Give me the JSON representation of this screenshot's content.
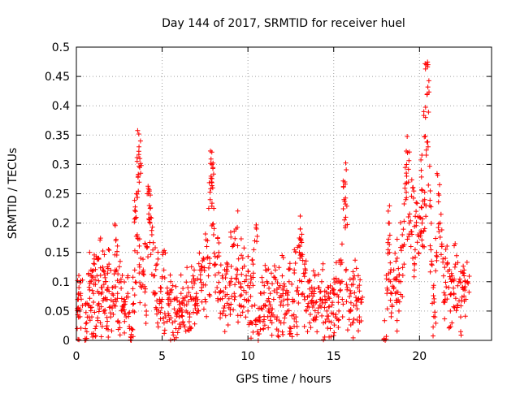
{
  "chart_data": {
    "type": "scatter",
    "title": "Day 144 of 2017, SRMTID for receiver huel",
    "xlabel": "GPS time / hours",
    "ylabel": "SRMTID / TECUs",
    "xlim": [
      0,
      24.2
    ],
    "ylim": [
      0,
      0.5
    ],
    "x_ticks": [
      0,
      5,
      10,
      15,
      20
    ],
    "x_tick_labels": [
      "0",
      "5",
      "10",
      "15",
      "20"
    ],
    "y_ticks": [
      0,
      0.05,
      0.1,
      0.15,
      0.2,
      0.25,
      0.3,
      0.35,
      0.4,
      0.45,
      0.5
    ],
    "y_tick_labels": [
      "0",
      "0.05",
      "0.1",
      "0.15",
      "0.2",
      "0.25",
      "0.3",
      "0.35",
      "0.4",
      "0.45",
      "0.5"
    ],
    "grid": true,
    "legend": "none",
    "marker": "+",
    "marker_color": "#ff0000",
    "gap_hours": [
      16.7,
      17.9
    ],
    "series": [
      {
        "name": "SRMTID",
        "points": [
          [
            0.05,
            0.02
          ],
          [
            0.1,
            0.07
          ],
          [
            0.15,
            0.09
          ],
          [
            0.2,
            0.05
          ],
          [
            0.25,
            0.08
          ],
          [
            0.5,
            0.0
          ],
          [
            0.6,
            0.03
          ],
          [
            0.7,
            0.06
          ],
          [
            0.8,
            0.1
          ],
          [
            0.85,
            0.12
          ],
          [
            0.9,
            0.04
          ],
          [
            1.0,
            0.08
          ],
          [
            1.05,
            0.13
          ],
          [
            1.1,
            0.02
          ],
          [
            1.2,
            0.11
          ],
          [
            1.25,
            0.06
          ],
          [
            1.3,
            0.14
          ],
          [
            1.4,
            0.03
          ],
          [
            1.5,
            0.09
          ],
          [
            1.55,
            0.12
          ],
          [
            1.6,
            0.05
          ],
          [
            1.7,
            0.1
          ],
          [
            1.75,
            0.02
          ],
          [
            1.8,
            0.07
          ],
          [
            1.9,
            0.13
          ],
          [
            2.0,
            0.04
          ],
          [
            2.1,
            0.09
          ],
          [
            2.2,
            0.06
          ],
          [
            2.3,
            0.17
          ],
          [
            2.35,
            0.12
          ],
          [
            2.4,
            0.08
          ],
          [
            2.5,
            0.03
          ],
          [
            2.6,
            0.1
          ],
          [
            2.7,
            0.05
          ],
          [
            2.8,
            0.07
          ],
          [
            2.9,
            0.04
          ],
          [
            3.0,
            0.08
          ],
          [
            3.1,
            0.02
          ],
          [
            3.2,
            0.0
          ],
          [
            3.3,
            0.05
          ],
          [
            3.4,
            0.12
          ],
          [
            3.45,
            0.22
          ],
          [
            3.5,
            0.25
          ],
          [
            3.55,
            0.18
          ],
          [
            3.6,
            0.28
          ],
          [
            3.65,
            0.33
          ],
          [
            3.7,
            0.31
          ],
          [
            3.75,
            0.14
          ],
          [
            3.8,
            0.09
          ],
          [
            3.9,
            0.12
          ],
          [
            4.0,
            0.06
          ],
          [
            4.1,
            0.16
          ],
          [
            4.2,
            0.25
          ],
          [
            4.25,
            0.23
          ],
          [
            4.3,
            0.2
          ],
          [
            4.4,
            0.18
          ],
          [
            4.5,
            0.11
          ],
          [
            4.6,
            0.08
          ],
          [
            4.7,
            0.13
          ],
          [
            4.8,
            0.05
          ],
          [
            4.9,
            0.09
          ],
          [
            5.0,
            0.07
          ],
          [
            5.1,
            0.12
          ],
          [
            5.2,
            0.04
          ],
          [
            5.3,
            0.08
          ],
          [
            5.4,
            0.06
          ],
          [
            5.5,
            0.1
          ],
          [
            5.6,
            0.03
          ],
          [
            5.7,
            0.07
          ],
          [
            5.8,
            0.02
          ],
          [
            5.9,
            0.05
          ],
          [
            6.0,
            0.04
          ],
          [
            6.1,
            0.08
          ],
          [
            6.2,
            0.03
          ],
          [
            6.3,
            0.06
          ],
          [
            6.4,
            0.05
          ],
          [
            6.5,
            0.09
          ],
          [
            6.6,
            0.04
          ],
          [
            6.7,
            0.07
          ],
          [
            6.8,
            0.11
          ],
          [
            6.9,
            0.06
          ],
          [
            7.0,
            0.08
          ],
          [
            7.1,
            0.05
          ],
          [
            7.2,
            0.12
          ],
          [
            7.3,
            0.09
          ],
          [
            7.4,
            0.14
          ],
          [
            7.5,
            0.07
          ],
          [
            7.6,
            0.16
          ],
          [
            7.7,
            0.11
          ],
          [
            7.8,
            0.24
          ],
          [
            7.85,
            0.28
          ],
          [
            7.9,
            0.3
          ],
          [
            7.95,
            0.26
          ],
          [
            8.0,
            0.18
          ],
          [
            8.1,
            0.13
          ],
          [
            8.2,
            0.09
          ],
          [
            8.3,
            0.15
          ],
          [
            8.4,
            0.07
          ],
          [
            8.5,
            0.11
          ],
          [
            8.6,
            0.05
          ],
          [
            8.7,
            0.09
          ],
          [
            8.8,
            0.13
          ],
          [
            8.9,
            0.06
          ],
          [
            9.0,
            0.1
          ],
          [
            9.1,
            0.16
          ],
          [
            9.2,
            0.08
          ],
          [
            9.3,
            0.19
          ],
          [
            9.4,
            0.12
          ],
          [
            9.5,
            0.06
          ],
          [
            9.6,
            0.09
          ],
          [
            9.7,
            0.14
          ],
          [
            9.8,
            0.07
          ],
          [
            9.9,
            0.11
          ],
          [
            10.0,
            0.05
          ],
          [
            10.1,
            0.09
          ],
          [
            10.2,
            0.03
          ],
          [
            10.3,
            0.13
          ],
          [
            10.4,
            0.06
          ],
          [
            10.5,
            0.19
          ],
          [
            10.6,
            0.0
          ],
          [
            10.7,
            0.04
          ],
          [
            10.8,
            0.08
          ],
          [
            10.9,
            0.02
          ],
          [
            11.0,
            0.06
          ],
          [
            11.1,
            0.1
          ],
          [
            11.2,
            0.05
          ],
          [
            11.3,
            0.08
          ],
          [
            11.4,
            0.03
          ],
          [
            11.5,
            0.07
          ],
          [
            11.6,
            0.12
          ],
          [
            11.7,
            0.04
          ],
          [
            11.8,
            0.09
          ],
          [
            11.9,
            0.06
          ],
          [
            12.0,
            0.11
          ],
          [
            12.1,
            0.03
          ],
          [
            12.2,
            0.08
          ],
          [
            12.3,
            0.05
          ],
          [
            12.4,
            0.1
          ],
          [
            12.5,
            0.02
          ],
          [
            12.6,
            0.07
          ],
          [
            12.7,
            0.12
          ],
          [
            12.8,
            0.04
          ],
          [
            12.9,
            0.09
          ],
          [
            13.0,
            0.15
          ],
          [
            13.05,
            0.19
          ],
          [
            13.1,
            0.17
          ],
          [
            13.2,
            0.08
          ],
          [
            13.3,
            0.13
          ],
          [
            13.4,
            0.05
          ],
          [
            13.5,
            0.1
          ],
          [
            13.6,
            0.03
          ],
          [
            13.7,
            0.08
          ],
          [
            13.8,
            0.06
          ],
          [
            13.9,
            0.11
          ],
          [
            14.0,
            0.04
          ],
          [
            14.1,
            0.09
          ],
          [
            14.2,
            0.06
          ],
          [
            14.3,
            0.1
          ],
          [
            14.4,
            0.03
          ],
          [
            14.5,
            0.07
          ],
          [
            14.6,
            0.05
          ],
          [
            14.7,
            0.09
          ],
          [
            14.8,
            0.02
          ],
          [
            14.9,
            0.06
          ],
          [
            15.0,
            0.08
          ],
          [
            15.1,
            0.04
          ],
          [
            15.2,
            0.1
          ],
          [
            15.3,
            0.05
          ],
          [
            15.4,
            0.13
          ],
          [
            15.5,
            0.07
          ],
          [
            15.6,
            0.24
          ],
          [
            15.65,
            0.27
          ],
          [
            15.7,
            0.21
          ],
          [
            15.8,
            0.09
          ],
          [
            15.9,
            0.05
          ],
          [
            16.0,
            0.08
          ],
          [
            16.1,
            0.03
          ],
          [
            16.2,
            0.11
          ],
          [
            16.3,
            0.06
          ],
          [
            16.4,
            0.09
          ],
          [
            16.5,
            0.04
          ],
          [
            16.6,
            0.07
          ],
          [
            18.0,
            0.0
          ],
          [
            18.1,
            0.08
          ],
          [
            18.2,
            0.2
          ],
          [
            18.25,
            0.15
          ],
          [
            18.3,
            0.1
          ],
          [
            18.4,
            0.06
          ],
          [
            18.5,
            0.12
          ],
          [
            18.6,
            0.08
          ],
          [
            18.7,
            0.14
          ],
          [
            18.8,
            0.05
          ],
          [
            18.9,
            0.1
          ],
          [
            19.0,
            0.18
          ],
          [
            19.1,
            0.13
          ],
          [
            19.2,
            0.24
          ],
          [
            19.25,
            0.28
          ],
          [
            19.3,
            0.32
          ],
          [
            19.4,
            0.2
          ],
          [
            19.5,
            0.16
          ],
          [
            19.6,
            0.26
          ],
          [
            19.7,
            0.12
          ],
          [
            19.8,
            0.22
          ],
          [
            19.9,
            0.18
          ],
          [
            20.0,
            0.21
          ],
          [
            20.1,
            0.29
          ],
          [
            20.15,
            0.2
          ],
          [
            20.2,
            0.16
          ],
          [
            20.3,
            0.24
          ],
          [
            20.35,
            0.38
          ],
          [
            20.4,
            0.47
          ],
          [
            20.45,
            0.42
          ],
          [
            20.5,
            0.33
          ],
          [
            20.6,
            0.23
          ],
          [
            20.7,
            0.13
          ],
          [
            20.8,
            0.09
          ],
          [
            20.9,
            0.04
          ],
          [
            21.0,
            0.15
          ],
          [
            21.1,
            0.25
          ],
          [
            21.2,
            0.2
          ],
          [
            21.3,
            0.16
          ],
          [
            21.4,
            0.11
          ],
          [
            21.5,
            0.07
          ],
          [
            21.6,
            0.13
          ],
          [
            21.7,
            0.09
          ],
          [
            21.8,
            0.05
          ],
          [
            21.9,
            0.11
          ],
          [
            22.0,
            0.08
          ],
          [
            22.1,
            0.13
          ],
          [
            22.2,
            0.06
          ],
          [
            22.3,
            0.1
          ],
          [
            22.4,
            0.04
          ],
          [
            22.5,
            0.09
          ],
          [
            22.6,
            0.12
          ],
          [
            22.7,
            0.07
          ],
          [
            22.8,
            0.1
          ]
        ]
      }
    ]
  }
}
